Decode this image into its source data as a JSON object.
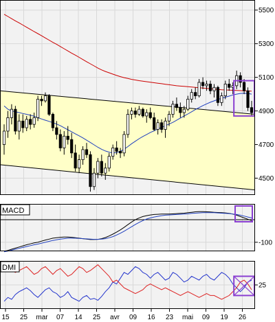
{
  "colors": {
    "background": "#ffffff",
    "plot_bg": "#f2f2f2",
    "channel_fill": "#ffffc8",
    "grid": "#d8d8d8",
    "frame": "#000000",
    "ma_long": "#cc0000",
    "ma_short": "#1f3fbf",
    "candle": "#000000",
    "macd_line": "#000000",
    "signal_line": "#1f3fbf",
    "dmi_plus": "#2233cc",
    "dmi_minus": "#dd2222",
    "highlight": "#8a3fd1"
  },
  "chart_data": [
    {
      "type": "candlestick",
      "title": "",
      "y_axis_side": "right",
      "y_ticks": [
        4500,
        4700,
        4900,
        5100,
        5300,
        5500
      ],
      "ylim": [
        4400,
        5560
      ],
      "x_ticks": [
        "15",
        "25",
        "mar",
        "07",
        "14",
        "25",
        "avr",
        "09",
        "16",
        "23",
        "mai",
        "09",
        "19",
        "26"
      ],
      "candles": [
        {
          "o": 4700,
          "h": 4820,
          "l": 4640,
          "c": 4780
        },
        {
          "o": 4780,
          "h": 4900,
          "l": 4740,
          "c": 4860
        },
        {
          "o": 4860,
          "h": 4940,
          "l": 4820,
          "c": 4910
        },
        {
          "o": 4910,
          "h": 4930,
          "l": 4760,
          "c": 4780
        },
        {
          "o": 4780,
          "h": 4880,
          "l": 4730,
          "c": 4840
        },
        {
          "o": 4840,
          "h": 4880,
          "l": 4770,
          "c": 4800
        },
        {
          "o": 4800,
          "h": 4870,
          "l": 4780,
          "c": 4850
        },
        {
          "o": 4850,
          "h": 4880,
          "l": 4790,
          "c": 4820
        },
        {
          "o": 4820,
          "h": 4890,
          "l": 4800,
          "c": 4860
        },
        {
          "o": 4860,
          "h": 4990,
          "l": 4840,
          "c": 4970
        },
        {
          "o": 4970,
          "h": 4990,
          "l": 4930,
          "c": 4960
        },
        {
          "o": 4960,
          "h": 5010,
          "l": 4950,
          "c": 4990
        },
        {
          "o": 4990,
          "h": 5000,
          "l": 4870,
          "c": 4880
        },
        {
          "o": 4880,
          "h": 4890,
          "l": 4780,
          "c": 4800
        },
        {
          "o": 4800,
          "h": 4840,
          "l": 4730,
          "c": 4760
        },
        {
          "o": 4760,
          "h": 4790,
          "l": 4660,
          "c": 4680
        },
        {
          "o": 4680,
          "h": 4780,
          "l": 4640,
          "c": 4750
        },
        {
          "o": 4750,
          "h": 4810,
          "l": 4700,
          "c": 4730
        },
        {
          "o": 4730,
          "h": 4770,
          "l": 4620,
          "c": 4650
        },
        {
          "o": 4650,
          "h": 4700,
          "l": 4540,
          "c": 4560
        },
        {
          "o": 4560,
          "h": 4640,
          "l": 4530,
          "c": 4610
        },
        {
          "o": 4610,
          "h": 4690,
          "l": 4580,
          "c": 4670
        },
        {
          "o": 4670,
          "h": 4710,
          "l": 4620,
          "c": 4640
        },
        {
          "o": 4640,
          "h": 4660,
          "l": 4420,
          "c": 4450
        },
        {
          "o": 4450,
          "h": 4560,
          "l": 4430,
          "c": 4530
        },
        {
          "o": 4530,
          "h": 4620,
          "l": 4500,
          "c": 4600
        },
        {
          "o": 4600,
          "h": 4640,
          "l": 4510,
          "c": 4530
        },
        {
          "o": 4530,
          "h": 4590,
          "l": 4490,
          "c": 4560
        },
        {
          "o": 4560,
          "h": 4650,
          "l": 4540,
          "c": 4630
        },
        {
          "o": 4630,
          "h": 4700,
          "l": 4610,
          "c": 4680
        },
        {
          "o": 4680,
          "h": 4720,
          "l": 4640,
          "c": 4660
        },
        {
          "o": 4660,
          "h": 4680,
          "l": 4620,
          "c": 4650
        },
        {
          "o": 4650,
          "h": 4780,
          "l": 4630,
          "c": 4760
        },
        {
          "o": 4760,
          "h": 4910,
          "l": 4740,
          "c": 4880
        },
        {
          "o": 4880,
          "h": 4920,
          "l": 4850,
          "c": 4900
        },
        {
          "o": 4900,
          "h": 4920,
          "l": 4860,
          "c": 4880
        },
        {
          "o": 4880,
          "h": 4930,
          "l": 4870,
          "c": 4910
        },
        {
          "o": 4910,
          "h": 4920,
          "l": 4860,
          "c": 4870
        },
        {
          "o": 4870,
          "h": 4910,
          "l": 4830,
          "c": 4890
        },
        {
          "o": 4890,
          "h": 4920,
          "l": 4850,
          "c": 4860
        },
        {
          "o": 4860,
          "h": 4890,
          "l": 4780,
          "c": 4790
        },
        {
          "o": 4790,
          "h": 4850,
          "l": 4760,
          "c": 4830
        },
        {
          "o": 4830,
          "h": 4850,
          "l": 4770,
          "c": 4790
        },
        {
          "o": 4790,
          "h": 4860,
          "l": 4740,
          "c": 4840
        },
        {
          "o": 4840,
          "h": 4900,
          "l": 4810,
          "c": 4880
        },
        {
          "o": 4880,
          "h": 4960,
          "l": 4860,
          "c": 4940
        },
        {
          "o": 4940,
          "h": 4980,
          "l": 4900,
          "c": 4920
        },
        {
          "o": 4920,
          "h": 4950,
          "l": 4860,
          "c": 4890
        },
        {
          "o": 4890,
          "h": 4930,
          "l": 4860,
          "c": 4910
        },
        {
          "o": 4910,
          "h": 4990,
          "l": 4900,
          "c": 4970
        },
        {
          "o": 4970,
          "h": 5030,
          "l": 4950,
          "c": 5010
        },
        {
          "o": 5010,
          "h": 5040,
          "l": 4970,
          "c": 4990
        },
        {
          "o": 4990,
          "h": 5090,
          "l": 4980,
          "c": 5070
        },
        {
          "o": 5070,
          "h": 5100,
          "l": 5030,
          "c": 5050
        },
        {
          "o": 5050,
          "h": 5080,
          "l": 5020,
          "c": 5060
        },
        {
          "o": 5060,
          "h": 5080,
          "l": 5000,
          "c": 5020
        },
        {
          "o": 5020,
          "h": 5060,
          "l": 4980,
          "c": 5040
        },
        {
          "o": 5040,
          "h": 5050,
          "l": 4930,
          "c": 4950
        },
        {
          "o": 4950,
          "h": 5010,
          "l": 4930,
          "c": 4990
        },
        {
          "o": 4990,
          "h": 5080,
          "l": 4970,
          "c": 5060
        },
        {
          "o": 5060,
          "h": 5090,
          "l": 5020,
          "c": 5040
        },
        {
          "o": 5040,
          "h": 5070,
          "l": 5000,
          "c": 5050
        },
        {
          "o": 5050,
          "h": 5140,
          "l": 5030,
          "c": 5110
        },
        {
          "o": 5110,
          "h": 5130,
          "l": 5040,
          "c": 5070
        },
        {
          "o": 5070,
          "h": 5090,
          "l": 5000,
          "c": 5020
        },
        {
          "o": 5020,
          "h": 5040,
          "l": 4900,
          "c": 4920
        },
        {
          "o": 4920,
          "h": 4960,
          "l": 4870,
          "c": 4890
        }
      ],
      "series": [
        {
          "role": "long moving average",
          "color_key": "ma_long",
          "values": [
            5475,
            5462,
            5449,
            5436,
            5424,
            5411,
            5398,
            5385,
            5372,
            5360,
            5347,
            5334,
            5321,
            5308,
            5296,
            5283,
            5270,
            5257,
            5244,
            5232,
            5219,
            5206,
            5193,
            5180,
            5168,
            5155,
            5144,
            5135,
            5127,
            5119,
            5111,
            5104,
            5098,
            5093,
            5088,
            5084,
            5080,
            5077,
            5074,
            5071,
            5068,
            5065,
            5062,
            5059,
            5056,
            5053,
            5050,
            5048,
            5046,
            5044,
            5042,
            5040,
            5038,
            5036,
            5034,
            5032,
            5030,
            5028,
            5026,
            5025,
            5024,
            5023,
            5022,
            5021,
            5020,
            5019,
            5018
          ]
        },
        {
          "role": "short moving average",
          "color_key": "ma_short",
          "values": [
            4930,
            4910,
            4900,
            4895,
            4890,
            4885,
            4880,
            4875,
            4868,
            4860,
            4852,
            4845,
            4838,
            4830,
            4822,
            4812,
            4800,
            4788,
            4776,
            4764,
            4752,
            4740,
            4726,
            4712,
            4698,
            4684,
            4672,
            4662,
            4655,
            4650,
            4652,
            4660,
            4672,
            4688,
            4705,
            4720,
            4735,
            4748,
            4760,
            4772,
            4782,
            4792,
            4802,
            4812,
            4822,
            4832,
            4845,
            4858,
            4870,
            4882,
            4895,
            4908,
            4920,
            4932,
            4942,
            4952,
            4960,
            4968,
            4975,
            4982,
            4988,
            4995,
            5000,
            5004,
            5005,
            5004,
            5000
          ]
        }
      ],
      "channel": {
        "upper": {
          "start": 5020,
          "end": 4880
        },
        "lower": {
          "start": 4580,
          "end": 4430
        }
      },
      "highlight_box": {
        "from_index": 62,
        "to_index": 66,
        "y_top": 5080,
        "y_bottom": 4870
      }
    },
    {
      "type": "line",
      "title": "MACD",
      "y_axis_side": "right",
      "y_ticks": [
        -100
      ],
      "ylim": [
        -140,
        70
      ],
      "series": [
        {
          "role": "macd",
          "color_key": "macd_line",
          "values": [
            -140,
            -136,
            -131,
            -126,
            -121,
            -116,
            -111,
            -107,
            -103,
            -100,
            -95,
            -90,
            -86,
            -82,
            -80,
            -78,
            -77,
            -77,
            -78,
            -80,
            -82,
            -84,
            -86,
            -88,
            -88,
            -87,
            -84,
            -79,
            -72,
            -64,
            -55,
            -45,
            -34,
            -22,
            -10,
            0,
            8,
            14,
            18,
            21,
            23,
            24,
            25,
            25,
            25,
            26,
            27,
            28,
            29,
            31,
            33,
            35,
            36,
            36,
            35,
            34,
            33,
            32,
            31,
            30,
            28,
            25,
            20,
            14,
            8,
            2,
            -4
          ]
        },
        {
          "role": "signal",
          "color_key": "signal_line",
          "values": [
            -142,
            -139,
            -135,
            -131,
            -127,
            -123,
            -119,
            -115,
            -111,
            -108,
            -104,
            -100,
            -96,
            -92,
            -89,
            -86,
            -84,
            -82,
            -82,
            -82,
            -83,
            -84,
            -85,
            -86,
            -87,
            -87,
            -86,
            -84,
            -80,
            -75,
            -68,
            -60,
            -51,
            -41,
            -31,
            -21,
            -12,
            -4,
            3,
            8,
            12,
            15,
            18,
            20,
            21,
            22,
            23,
            24,
            25,
            26,
            28,
            29,
            30,
            31,
            31,
            31,
            31,
            30,
            29,
            28,
            27,
            25,
            23,
            20,
            16,
            12,
            8
          ]
        }
      ]
    },
    {
      "type": "line",
      "title": "DMI",
      "y_axis_side": "right",
      "y_ticks": [
        25
      ],
      "ylim": [
        0,
        50
      ],
      "series": [
        {
          "role": "dmi plus",
          "color_key": "dmi_plus",
          "values": [
            8,
            12,
            10,
            15,
            18,
            20,
            22,
            19,
            15,
            12,
            16,
            20,
            22,
            18,
            16,
            12,
            14,
            18,
            12,
            10,
            8,
            12,
            14,
            10,
            11,
            9,
            13,
            18,
            22,
            28,
            26,
            32,
            38,
            36,
            40,
            44,
            42,
            38,
            36,
            32,
            36,
            38,
            34,
            30,
            32,
            38,
            36,
            32,
            28,
            30,
            34,
            32,
            30,
            34,
            36,
            32,
            30,
            34,
            38,
            36,
            32,
            26,
            22,
            18,
            22,
            28,
            30
          ]
        },
        {
          "role": "dmi minus",
          "color_key": "dmi_minus",
          "values": [
            42,
            44,
            40,
            38,
            40,
            42,
            44,
            40,
            36,
            38,
            42,
            44,
            40,
            36,
            40,
            42,
            38,
            34,
            36,
            40,
            44,
            42,
            38,
            40,
            43,
            46,
            42,
            38,
            34,
            28,
            30,
            26,
            22,
            20,
            18,
            16,
            18,
            20,
            24,
            26,
            24,
            22,
            20,
            22,
            20,
            18,
            16,
            14,
            16,
            18,
            16,
            14,
            12,
            14,
            16,
            14,
            14,
            12,
            10,
            12,
            14,
            18,
            22,
            28,
            30,
            26,
            20
          ]
        }
      ],
      "highlight_box": {
        "from_index": 62,
        "to_index": 66,
        "y_top": 34,
        "y_bottom": 14
      }
    }
  ]
}
